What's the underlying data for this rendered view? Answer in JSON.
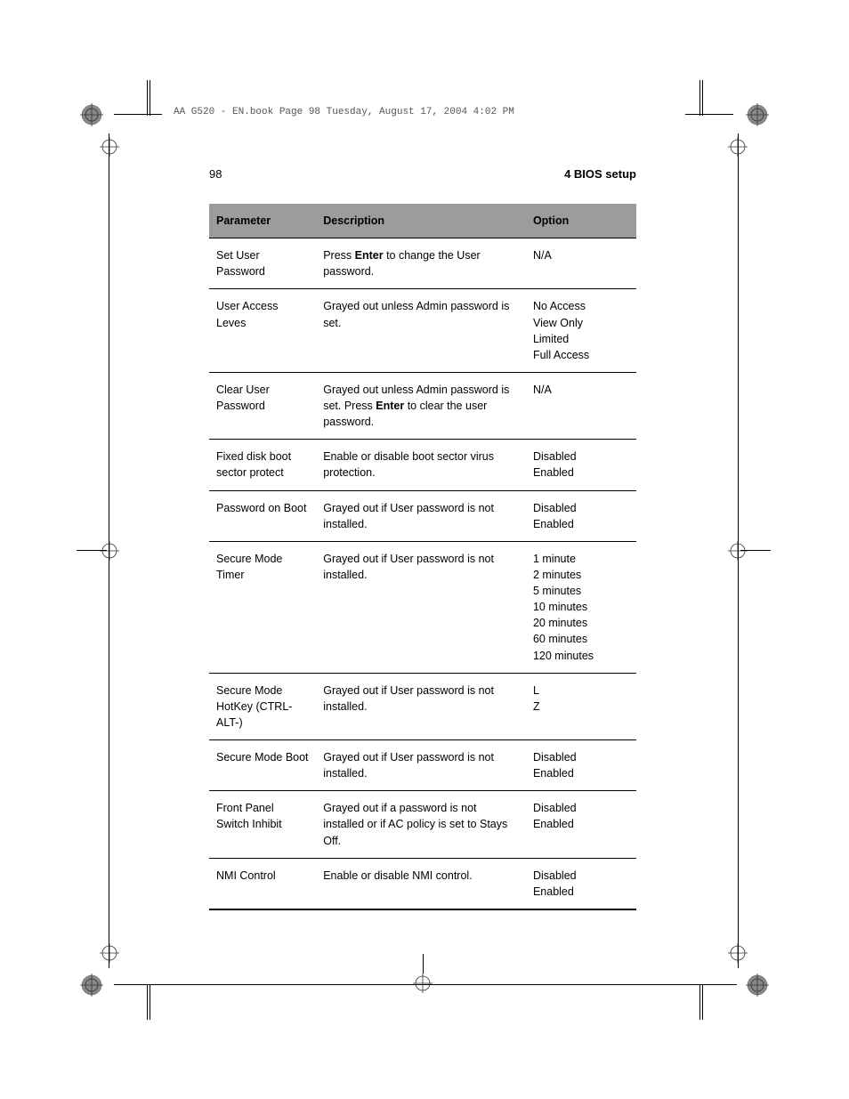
{
  "headerText": "AA G520 - EN.book  Page 98  Tuesday, August 17, 2004  4:02 PM",
  "pageNumber": "98",
  "pageTitle": "4 BIOS setup",
  "table": {
    "headers": {
      "param": "Parameter",
      "desc": "Description",
      "opt": "Option"
    },
    "rows": [
      {
        "param": "Set User Password",
        "desc": [
          {
            "t": "Press ",
            "b": false
          },
          {
            "t": "Enter",
            "b": true
          },
          {
            "t": " to change the User password.",
            "b": false
          }
        ],
        "options": [
          "N/A"
        ]
      },
      {
        "param": "User Access Leves",
        "desc": [
          {
            "t": "Grayed out unless Admin password is set.",
            "b": false
          }
        ],
        "options": [
          "No Access",
          "View Only",
          "Limited",
          "Full Access"
        ]
      },
      {
        "param": "Clear User Password",
        "desc": [
          {
            "t": "Grayed out unless Admin password is set. Press ",
            "b": false
          },
          {
            "t": "Enter",
            "b": true
          },
          {
            "t": " to clear the user password.",
            "b": false
          }
        ],
        "options": [
          "N/A"
        ]
      },
      {
        "param": "Fixed disk boot sector protect",
        "desc": [
          {
            "t": "Enable or disable boot sector virus protection.",
            "b": false
          }
        ],
        "options": [
          "Disabled",
          "Enabled"
        ]
      },
      {
        "param": "Password on Boot",
        "desc": [
          {
            "t": "Grayed out if User password is not installed.",
            "b": false
          }
        ],
        "options": [
          "Disabled",
          "Enabled"
        ]
      },
      {
        "param": "Secure Mode Timer",
        "desc": [
          {
            "t": "Grayed out if User password is not installed.",
            "b": false
          }
        ],
        "options": [
          "1 minute",
          "2 minutes",
          "5 minutes",
          "10 minutes",
          "20 minutes",
          "60 minutes",
          "120 minutes"
        ]
      },
      {
        "param": "Secure Mode HotKey (CTRL-ALT-)",
        "desc": [
          {
            "t": "Grayed out if User password is not installed.",
            "b": false
          }
        ],
        "options": [
          "L",
          "Z"
        ]
      },
      {
        "param": "Secure Mode Boot",
        "desc": [
          {
            "t": "Grayed out if User password is not installed.",
            "b": false
          }
        ],
        "options": [
          "Disabled",
          "Enabled"
        ]
      },
      {
        "param": "Front Panel Switch Inhibit",
        "desc": [
          {
            "t": "Grayed out if a password is not installed or if AC policy is set to Stays Off.",
            "b": false
          }
        ],
        "options": [
          "Disabled",
          "Enabled"
        ]
      },
      {
        "param": "NMI Control",
        "desc": [
          {
            "t": "Enable or disable NMI control.",
            "b": false
          }
        ],
        "options": [
          "Disabled",
          "Enabled"
        ]
      }
    ]
  },
  "style": {
    "headerBg": "#9c9c9c",
    "rowBorder": "#000000",
    "fontSize": 12.5,
    "pageWidth": 954,
    "pageHeight": 1235
  }
}
